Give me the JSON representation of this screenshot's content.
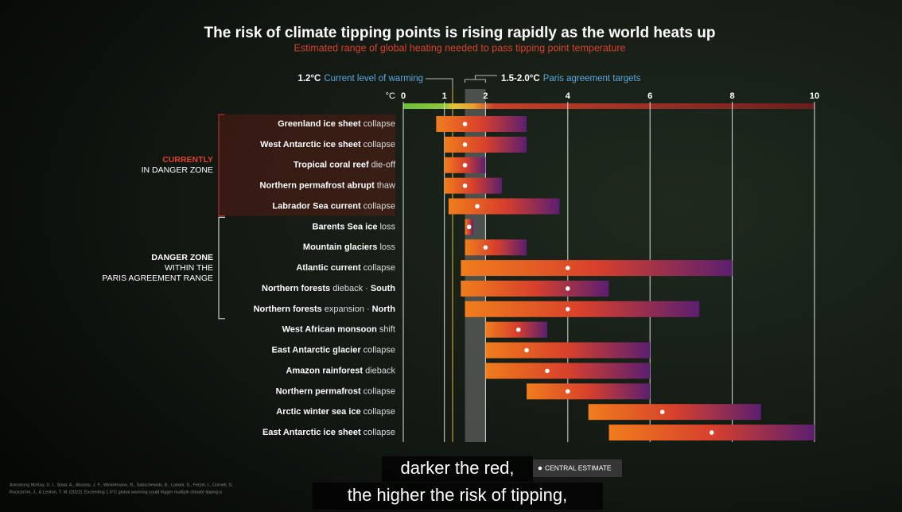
{
  "chart_data": {
    "type": "range",
    "title": "The risk of climate tipping points is rising rapidly as the world heats up",
    "subtitle": "Estimated range of global heating needed to pass tipping point temperature",
    "axis_unit": "°C",
    "xlim": [
      0,
      10
    ],
    "xticks": [
      0,
      1,
      2,
      4,
      6,
      8,
      10
    ],
    "grid": true,
    "current": {
      "value": 1.2,
      "label": "1.2°C",
      "text": "Current level of warming"
    },
    "paris": {
      "range": [
        1.5,
        2.0
      ],
      "label": "1.5-2.0°C",
      "text": "Paris agreement targets"
    },
    "categories": [
      {
        "name": "Greenland ice sheet",
        "suffix": "collapse"
      },
      {
        "name": "West Antarctic ice sheet",
        "suffix": "collapse"
      },
      {
        "name": "Tropical coral reef",
        "suffix": "die-off"
      },
      {
        "name": "Northern permafrost abrupt",
        "suffix": "thaw"
      },
      {
        "name": "Labrador Sea current",
        "suffix": "collapse"
      },
      {
        "name": "Barents Sea ice",
        "suffix": "loss"
      },
      {
        "name": "Mountain glaciers",
        "suffix": "loss"
      },
      {
        "name": "Atlantic current",
        "suffix": "collapse"
      },
      {
        "name": "Northern forests",
        "suffix": "dieback ·",
        "tail": "South"
      },
      {
        "name": "Northern forests",
        "suffix": "expansion ·",
        "tail": "North"
      },
      {
        "name": "West African monsoon",
        "suffix": "shift"
      },
      {
        "name": "East Antarctic glacier",
        "suffix": "collapse"
      },
      {
        "name": "Amazon rainforest",
        "suffix": "dieback"
      },
      {
        "name": "Northern permafrost",
        "suffix": "collapse"
      },
      {
        "name": "Arctic winter sea ice",
        "suffix": "collapse"
      },
      {
        "name": "East Antarctic ice sheet",
        "suffix": "collapse"
      }
    ],
    "low": [
      0.8,
      1.0,
      1.0,
      1.0,
      1.1,
      1.5,
      1.5,
      1.4,
      1.4,
      1.5,
      2.0,
      2.0,
      2.0,
      3.0,
      4.5,
      5.0
    ],
    "high": [
      3.0,
      3.0,
      2.0,
      2.4,
      3.8,
      1.7,
      3.0,
      8.0,
      5.0,
      7.2,
      3.5,
      6.0,
      6.0,
      6.0,
      8.7,
      10.0
    ],
    "central": [
      1.5,
      1.5,
      1.5,
      1.5,
      1.8,
      1.6,
      2.0,
      4.0,
      4.0,
      4.0,
      2.8,
      3.0,
      3.5,
      4.0,
      6.3,
      7.5
    ],
    "bar_colors": [
      "#f07d1c",
      "#d8402c",
      "#5b1f70"
    ],
    "groups": [
      {
        "lines": [
          "CURRENTLY",
          "IN DANGER ZONE"
        ],
        "rows": [
          0,
          4
        ]
      },
      {
        "lines": [
          "DANGER ZONE",
          "WITHIN THE",
          "PARIS AGREEMENT RANGE"
        ],
        "rows": [
          5,
          9
        ]
      }
    ],
    "legend": "CENTRAL ESTIMATE",
    "captions": [
      "darker the red,",
      "the higher the risk of tipping,"
    ],
    "source": [
      "Armstrong McKay, D. I., Staal, A., Abrams, J. F., Winkelmann, R., Sakschewski, B., Loriani, S., Fetzer, I., Cornell, S.",
      "Rockström, J., & Lenton, T. M. (2022). Exceeding 1.5°C global warming could trigger multiple climate tipping p"
    ]
  }
}
